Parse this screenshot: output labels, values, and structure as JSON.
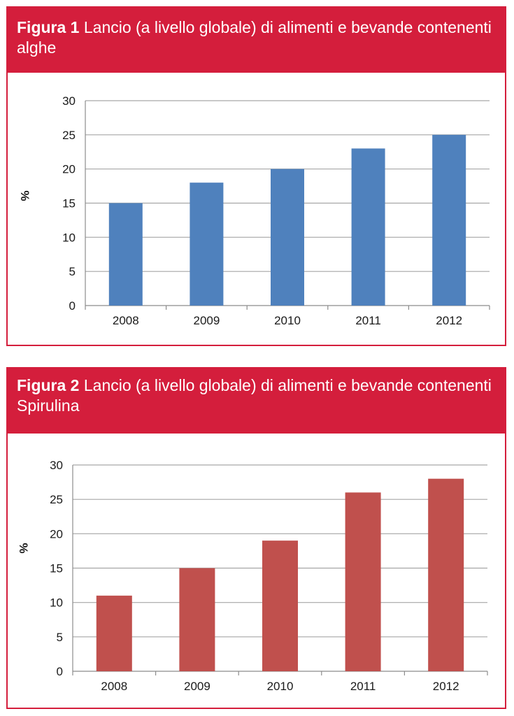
{
  "figures": [
    {
      "label": "Figura 1",
      "caption": "Lancio (a livello globale) di alimenti e bevande contenenti alghe",
      "bar_color": "#4f81bd"
    },
    {
      "label": "Figura 2",
      "caption": "Lancio (a livello globale) di alimenti e bevande contenenti Spirulina",
      "bar_color": "#c0504d"
    }
  ],
  "chart_data": [
    {
      "type": "bar",
      "title": "Figura 1 Lancio (a livello globale) di alimenti e bevande contenenti alghe",
      "categories": [
        "2008",
        "2009",
        "2010",
        "2011",
        "2012"
      ],
      "values": [
        15,
        18,
        20,
        23,
        25
      ],
      "xlabel": "",
      "ylabel": "%",
      "ylim": [
        0,
        30
      ],
      "yticks": [
        0,
        5,
        10,
        15,
        20,
        25,
        30
      ],
      "grid": true,
      "color": "#4f81bd"
    },
    {
      "type": "bar",
      "title": "Figura 2 Lancio (a livello globale) di alimenti e bevande contenenti Spirulina",
      "categories": [
        "2008",
        "2009",
        "2010",
        "2011",
        "2012"
      ],
      "values": [
        11,
        15,
        19,
        26,
        28
      ],
      "xlabel": "",
      "ylabel": "%",
      "ylim": [
        0,
        30
      ],
      "yticks": [
        0,
        5,
        10,
        15,
        20,
        25,
        30
      ],
      "grid": true,
      "color": "#c0504d"
    }
  ]
}
